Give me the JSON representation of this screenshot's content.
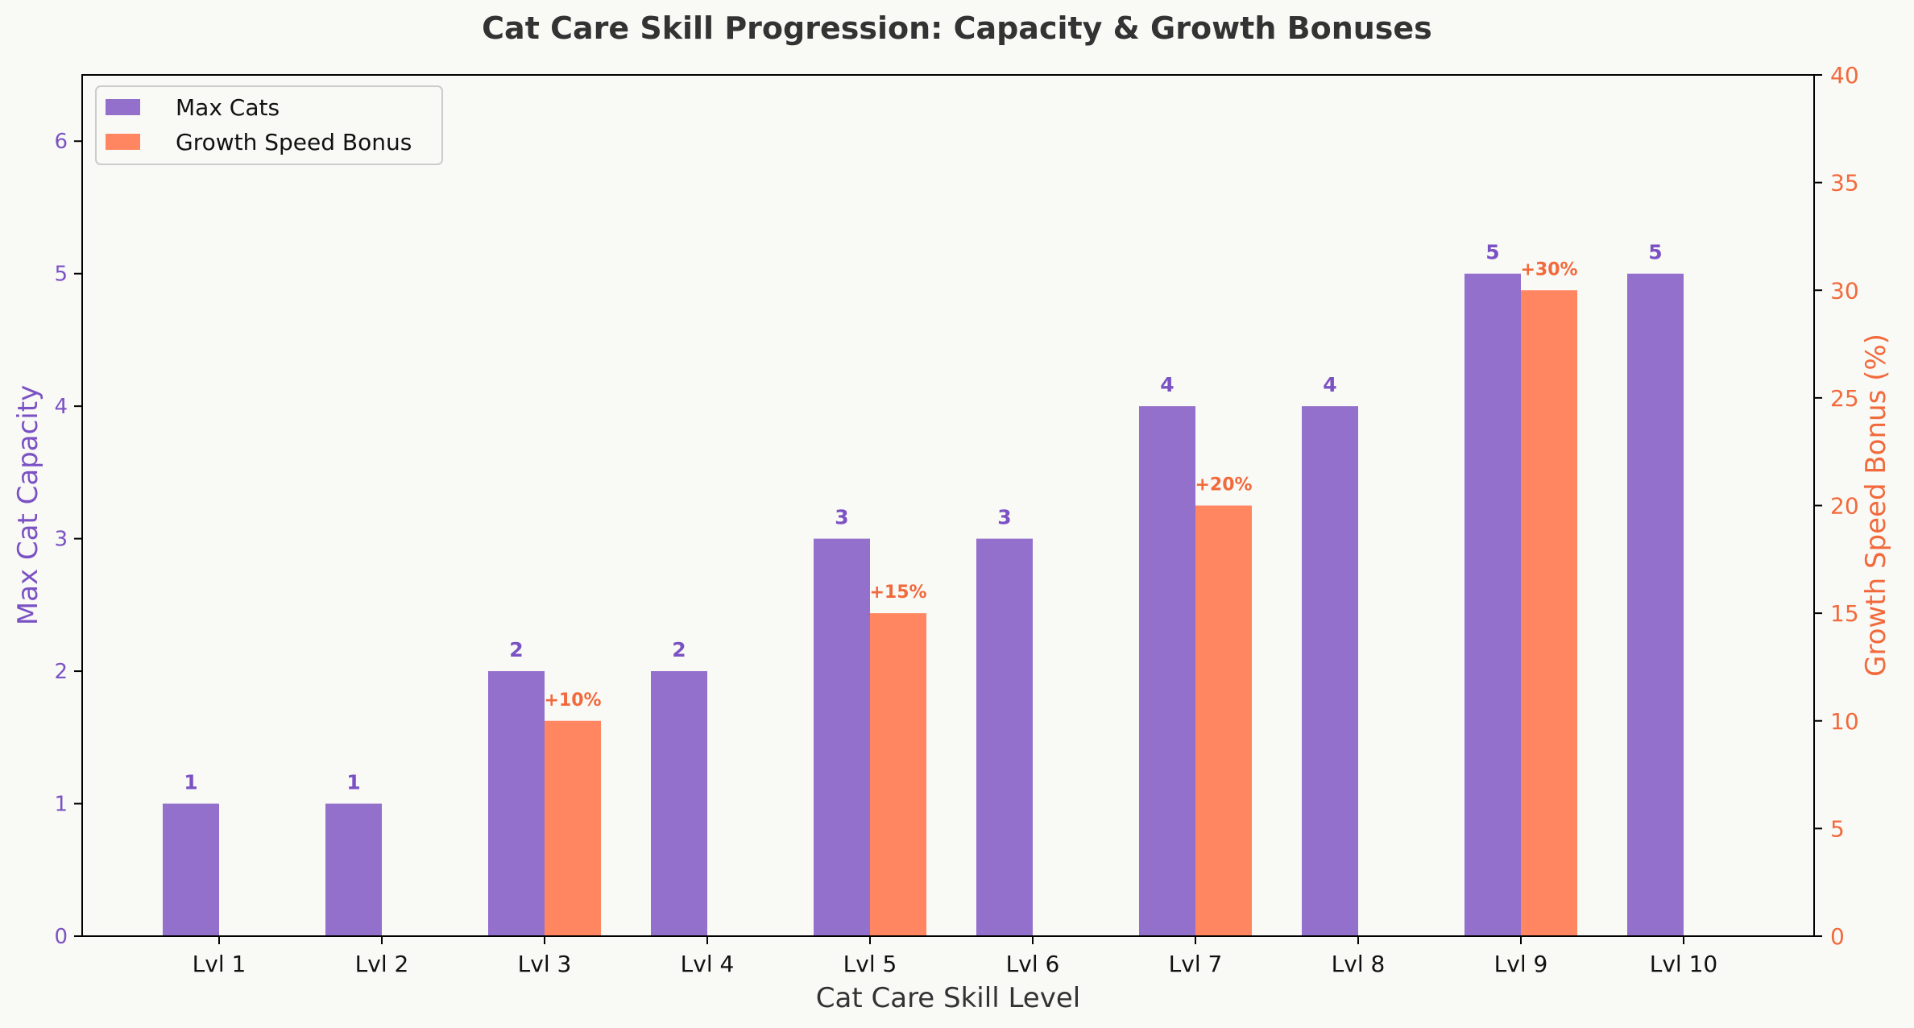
{
  "chart_data": {
    "type": "bar",
    "title": "Cat Care Skill Progression: Capacity & Growth Bonuses",
    "xlabel": "Cat Care Skill Level",
    "ylabel_left": "Max Cat Capacity",
    "ylabel_right": "Growth Speed Bonus (%)",
    "categories": [
      "Lvl 1",
      "Lvl 2",
      "Lvl 3",
      "Lvl 4",
      "Lvl 5",
      "Lvl 6",
      "Lvl 7",
      "Lvl 8",
      "Lvl 9",
      "Lvl 10"
    ],
    "ylim_left": [
      0,
      6.5
    ],
    "yticks_left": [
      "0",
      "1",
      "2",
      "3",
      "4",
      "5",
      "6"
    ],
    "ylim_right": [
      0,
      40
    ],
    "yticks_right": [
      "0",
      "5",
      "10",
      "15",
      "20",
      "25",
      "30",
      "35",
      "40"
    ],
    "grid": false,
    "legend_position": "top-left",
    "series": [
      {
        "name": "Max Cats",
        "axis": "left",
        "color": "#9370cc",
        "label_color": "#7b52c4",
        "values": [
          1,
          1,
          2,
          2,
          3,
          3,
          4,
          4,
          5,
          5
        ],
        "labels": [
          "1",
          "1",
          "2",
          "2",
          "3",
          "3",
          "4",
          "4",
          "5",
          "5"
        ]
      },
      {
        "name": "Growth Speed Bonus",
        "axis": "right",
        "color": "#ff8660",
        "label_color": "#f26a3c",
        "values": [
          0,
          0,
          10,
          0,
          15,
          0,
          20,
          0,
          30,
          0
        ],
        "labels": [
          "",
          "",
          "+10%",
          "",
          "+15%",
          "",
          "+20%",
          "",
          "+30%",
          ""
        ]
      }
    ]
  }
}
